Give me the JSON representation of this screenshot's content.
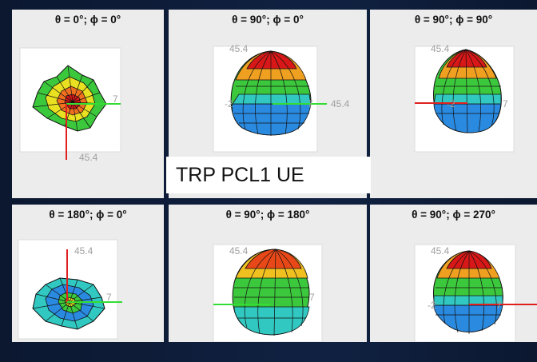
{
  "figure_title": "TRP PCL1 UE",
  "panels": [
    {
      "id": "p1",
      "title": "θ = 0°; ϕ = 0°",
      "view": "top",
      "labels": [
        "45.4",
        "7"
      ]
    },
    {
      "id": "p2",
      "title": "θ = 90°; ϕ = 0°",
      "view": "side",
      "labels": [
        "45.4",
        "45.4",
        "-2",
        "7"
      ]
    },
    {
      "id": "p3",
      "title": "θ = 90°; ϕ = 90°",
      "view": "side",
      "labels": [
        "45.4",
        "-2",
        "7"
      ]
    },
    {
      "id": "p4",
      "title": "θ = 180°; ϕ = 0°",
      "view": "bottom",
      "labels": [
        "45.4",
        "7"
      ]
    },
    {
      "id": "p5",
      "title": "θ = 90°; ϕ = 180°",
      "view": "side",
      "labels": [
        "45.4",
        "7"
      ]
    },
    {
      "id": "p6",
      "title": "θ = 90°; ϕ = 270°",
      "view": "side",
      "labels": [
        "45.4",
        "-2",
        "7"
      ]
    }
  ],
  "colors": {
    "axis_x": "#33dd33",
    "axis_y": "#e02020",
    "axis_z": "#1a2aa0",
    "label": "#a0a0a0",
    "box": "#ffffff",
    "background": "#0e1b33",
    "panel": "#ececec"
  }
}
